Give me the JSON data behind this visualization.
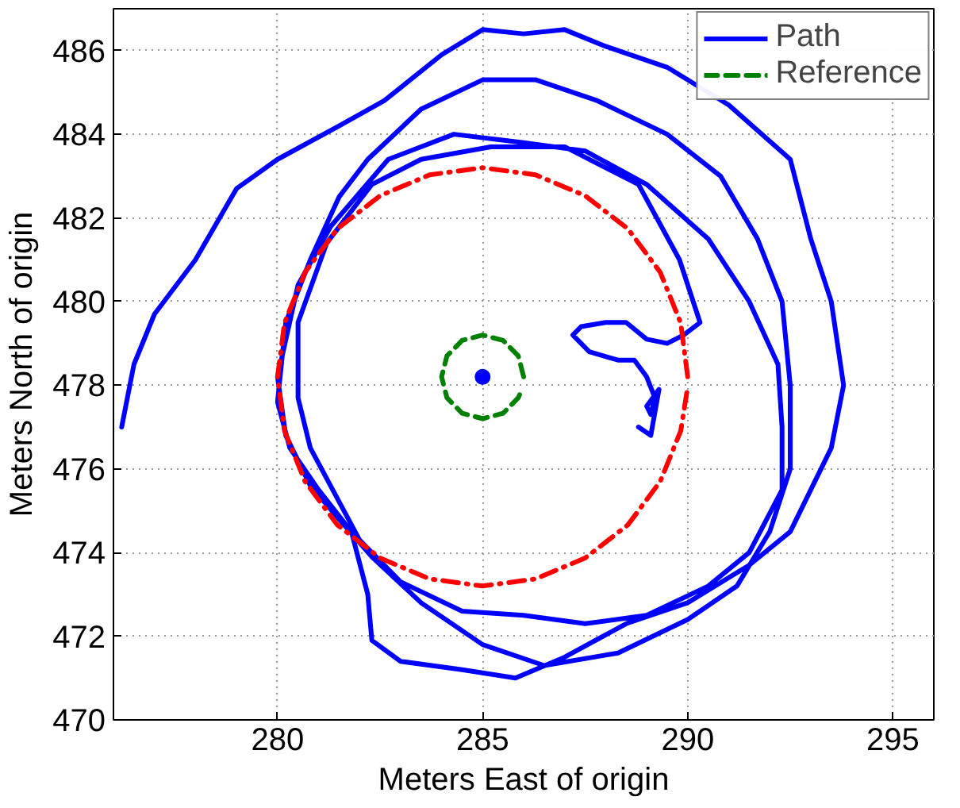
{
  "chart_data": {
    "type": "line",
    "xlabel": "Meters East of origin",
    "ylabel": "Meters North of origin",
    "xlim": [
      276,
      296
    ],
    "xticks": [
      280,
      285,
      290,
      295
    ],
    "ylim": [
      470,
      487
    ],
    "yticks": [
      470,
      472,
      474,
      476,
      478,
      480,
      482,
      484,
      486
    ],
    "grid": true,
    "legend": "top right",
    "series": [
      {
        "name": "Path",
        "color": "#0000ff",
        "line_style": "solid",
        "x": [
          276.2,
          276.5,
          277,
          278,
          279,
          280,
          281.5,
          282.6,
          284,
          285,
          286,
          287,
          288,
          289.5,
          291,
          292.5,
          293,
          293.5,
          293.8,
          293.5,
          293,
          292.5,
          291.5,
          290,
          288.5,
          287,
          285.8,
          284.5,
          283,
          282.3,
          282.2,
          281.8,
          281,
          280.3,
          280,
          280.2,
          280.8,
          281.5,
          282.2,
          283.5,
          285,
          286.3,
          287.8,
          289.5,
          290.8,
          291.7,
          292.3,
          292.5,
          292.5,
          292,
          291.2,
          290,
          288.3,
          286.5,
          285,
          283.5,
          282.3,
          281.5,
          280.8,
          280.2,
          280,
          280.5,
          281.3,
          282.7,
          284.3,
          286,
          287.5,
          289,
          290.5,
          291.5,
          292.2,
          292.3,
          292.3,
          291.5,
          290.5,
          289,
          287.5,
          286,
          284.5,
          283,
          282,
          281.4,
          280.8,
          280.5,
          280.5,
          281.2,
          282.3,
          283.5,
          285.2,
          287,
          288.8,
          289.8,
          290.3,
          289.9,
          289.5,
          289,
          288.5,
          288,
          287.4,
          287.2,
          287.6,
          288.3,
          288.7,
          289,
          289.2,
          289.1,
          289.0,
          289.3,
          289.1,
          288.8
        ],
        "values": [
          477,
          478.5,
          479.7,
          481,
          482.7,
          483.4,
          484.2,
          484.8,
          485.9,
          486.5,
          486.4,
          486.5,
          486.1,
          485.6,
          484.7,
          483.4,
          481.5,
          480,
          478,
          476.5,
          475.5,
          474.5,
          473.7,
          472.8,
          472.3,
          471.5,
          471.0,
          471.2,
          471.4,
          471.9,
          473,
          474.5,
          475.5,
          476.5,
          477.6,
          479.5,
          481,
          482.5,
          483.4,
          484.6,
          485.3,
          485.3,
          484.8,
          484,
          483,
          481.5,
          480,
          478,
          476,
          474.5,
          473.2,
          472.4,
          471.6,
          471.3,
          471.8,
          472.8,
          473.9,
          474.8,
          475.6,
          476.8,
          478.2,
          480.4,
          481.8,
          483.4,
          484.0,
          483.8,
          483.6,
          482.8,
          481.5,
          480,
          478.5,
          477,
          475.5,
          474,
          473.2,
          472.5,
          472.3,
          472.5,
          472.6,
          473.3,
          474.3,
          475.4,
          476.5,
          477.7,
          479.5,
          481.4,
          482.8,
          483.4,
          483.7,
          483.7,
          482.8,
          481,
          479.5,
          479.2,
          479,
          479.1,
          479.5,
          479.5,
          479.4,
          479.2,
          478.8,
          478.6,
          478.6,
          478.2,
          477.7,
          477.3,
          477.5,
          477.9,
          476.8,
          477.0
        ]
      },
      {
        "name": "Reference",
        "color": "#008000",
        "line_style": "dashed",
        "x": [
          286,
          285.87,
          285.5,
          285,
          284.5,
          284.13,
          284,
          284.13,
          284.5,
          285,
          285.5,
          285.87,
          285.97
        ],
        "values": [
          478.2,
          478.7,
          479.07,
          479.2,
          479.07,
          478.7,
          478.2,
          477.7,
          477.33,
          477.2,
          477.33,
          477.7,
          477.94
        ]
      },
      {
        "color": "#ff0000",
        "line_style": "dashdot",
        "x": [
          290,
          289.83,
          289.33,
          288.54,
          287.5,
          286.29,
          285,
          283.71,
          282.5,
          281.46,
          280.67,
          280.17,
          280,
          280.17,
          280.67,
          281.46,
          282.5,
          283.71,
          285,
          286.29,
          287.5,
          288.54,
          289.33,
          289.83,
          289.99
        ],
        "values": [
          478.2,
          479.49,
          480.7,
          481.74,
          482.53,
          483.03,
          483.2,
          483.03,
          482.53,
          481.74,
          480.7,
          479.49,
          478.2,
          476.91,
          475.7,
          474.66,
          473.87,
          473.37,
          473.2,
          473.37,
          473.87,
          474.66,
          475.7,
          476.91,
          477.9
        ]
      },
      {
        "type": "scatter",
        "color": "#0000ff",
        "marker": "circle",
        "x": [
          285
        ],
        "values": [
          478.2
        ]
      }
    ]
  }
}
